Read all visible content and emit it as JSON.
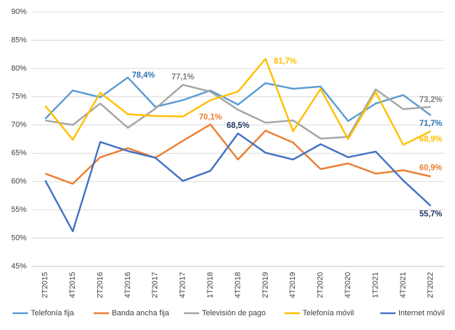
{
  "chart_data": {
    "type": "line",
    "categories": [
      "2T2015",
      "4T2015",
      "2T2016",
      "4T2016",
      "2T2017",
      "4T2017",
      "1T2018",
      "4T2018",
      "2T2019",
      "4T2019",
      "2T2020",
      "4T2020",
      "1T2021",
      "4T2021",
      "2T2022"
    ],
    "ylim": [
      45,
      90
    ],
    "yticks": [
      {
        "value": 45,
        "label": "45%"
      },
      {
        "value": 50,
        "label": "50%"
      },
      {
        "value": 55,
        "label": "55%"
      },
      {
        "value": 60,
        "label": "60%"
      },
      {
        "value": 65,
        "label": "65%"
      },
      {
        "value": 70,
        "label": "70%"
      },
      {
        "value": 75,
        "label": "75%"
      },
      {
        "value": 80,
        "label": "80%"
      },
      {
        "value": 85,
        "label": "85%"
      },
      {
        "value": 90,
        "label": "90%"
      }
    ],
    "grid": true,
    "legend": "bottom",
    "series": [
      {
        "name": "Telefonía fija",
        "color": "#5b9bd5",
        "label_color": "#2e75b6",
        "values": [
          71.1,
          76.1,
          74.9,
          78.4,
          73.2,
          74.4,
          76.1,
          73.6,
          77.4,
          76.4,
          76.8,
          70.7,
          73.8,
          75.3,
          71.7
        ],
        "value_labels": [
          null,
          null,
          null,
          "78,4%",
          null,
          null,
          null,
          null,
          null,
          null,
          null,
          null,
          null,
          null,
          "71,7%"
        ]
      },
      {
        "name": "Banda ancha fija",
        "color": "#ed7d31",
        "label_color": "#ed7d31",
        "values": [
          61.4,
          59.6,
          64.3,
          65.9,
          64.2,
          67.2,
          70.1,
          63.9,
          69.0,
          66.9,
          62.2,
          63.2,
          61.4,
          62.0,
          60.9
        ],
        "value_labels": [
          null,
          null,
          null,
          null,
          null,
          null,
          "70,1%",
          null,
          null,
          null,
          null,
          null,
          null,
          null,
          "60,9%"
        ]
      },
      {
        "name": "Televisión de pago",
        "color": "#a5a5a5",
        "label_color": "#7f7f7f",
        "values": [
          70.8,
          70.0,
          73.8,
          69.5,
          72.9,
          77.1,
          75.9,
          72.7,
          70.4,
          70.8,
          67.6,
          67.9,
          76.3,
          72.8,
          73.2
        ],
        "value_labels": [
          null,
          null,
          null,
          null,
          null,
          "77,1%",
          null,
          null,
          null,
          null,
          null,
          null,
          null,
          null,
          "73,2%"
        ]
      },
      {
        "name": "Telefonía móvil",
        "color": "#ffc000",
        "label_color": "#ffc000",
        "values": [
          73.4,
          67.4,
          75.7,
          71.9,
          71.6,
          71.5,
          74.4,
          75.9,
          81.7,
          68.9,
          76.4,
          67.5,
          75.8,
          66.5,
          68.9
        ],
        "value_labels": [
          null,
          null,
          null,
          null,
          null,
          null,
          null,
          null,
          "81,7%",
          null,
          null,
          null,
          null,
          null,
          "68,9%"
        ]
      },
      {
        "name": "Internet móvil",
        "color": "#4472c4",
        "label_color": "#203864",
        "values": [
          60.2,
          51.2,
          67.0,
          65.4,
          64.2,
          60.1,
          61.9,
          68.5,
          65.1,
          63.9,
          66.6,
          64.3,
          65.3,
          60.2,
          55.7
        ],
        "value_labels": [
          null,
          null,
          null,
          null,
          null,
          null,
          null,
          "68,5%",
          null,
          null,
          null,
          null,
          null,
          null,
          "55,7%"
        ]
      }
    ]
  }
}
